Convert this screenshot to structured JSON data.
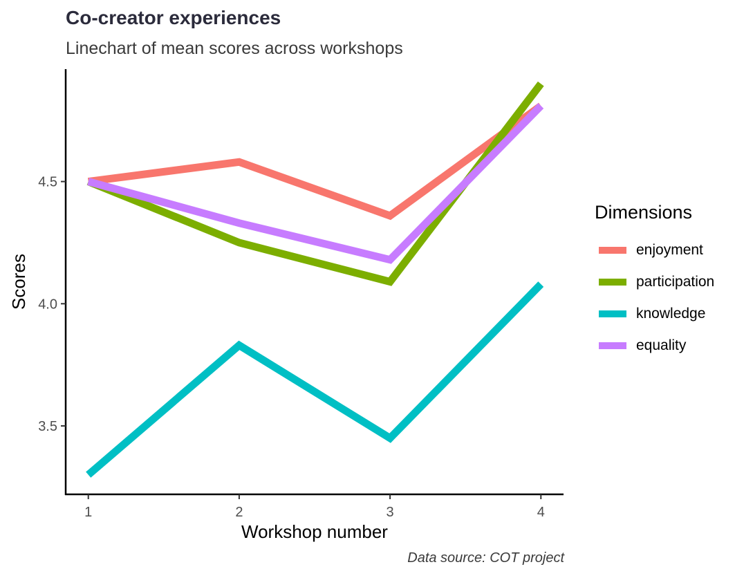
{
  "chart_data": {
    "type": "line",
    "title": "Co-creator experiences",
    "subtitle": "Linechart of mean scores across workshops",
    "caption": "Data source: COT project",
    "xlabel": "Workshop number",
    "ylabel": "Scores",
    "x": [
      1,
      2,
      3,
      4
    ],
    "x_ticks": [
      "1",
      "2",
      "3",
      "4"
    ],
    "y_ticks": [
      "3.5",
      "4.0",
      "4.5"
    ],
    "xlim": [
      0.85,
      4.15
    ],
    "ylim": [
      3.22,
      4.96
    ],
    "grid": false,
    "legend": {
      "title": "Dimensions",
      "placement": "right"
    },
    "series": [
      {
        "name": "enjoyment",
        "color": "#F8766D",
        "values": [
          4.5,
          4.58,
          4.36,
          4.81
        ]
      },
      {
        "name": "participation",
        "color": "#7CAE00",
        "values": [
          4.5,
          4.25,
          4.09,
          4.9
        ]
      },
      {
        "name": "knowledge",
        "color": "#00BFC4",
        "values": [
          3.3,
          3.83,
          3.45,
          4.08
        ]
      },
      {
        "name": "equality",
        "color": "#C77CFF",
        "values": [
          4.5,
          4.33,
          4.18,
          4.81
        ]
      }
    ]
  }
}
